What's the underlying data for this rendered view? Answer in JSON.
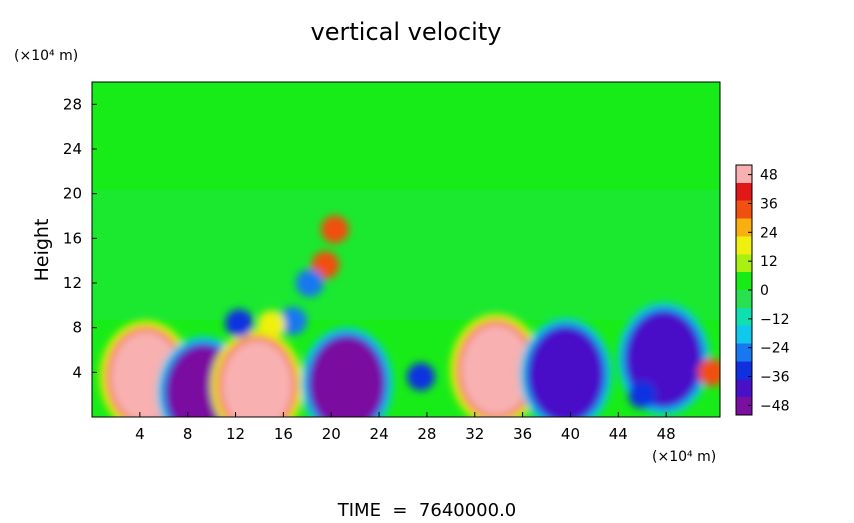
{
  "chart_data": {
    "type": "heatmap",
    "title": "vertical velocity",
    "ylabel": "Height",
    "y_unit_label": "(×10⁴ m)",
    "x_unit_label": "(×10⁴ m)",
    "footer": "TIME  =  7640000.0",
    "x_range": [
      0,
      52.5
    ],
    "y_range": [
      0,
      30
    ],
    "x_ticks": [
      4,
      8,
      12,
      16,
      20,
      24,
      28,
      32,
      36,
      40,
      44,
      48
    ],
    "y_ticks": [
      4,
      8,
      12,
      16,
      20,
      24,
      28
    ],
    "colorbar": {
      "range": [
        -52,
        52
      ],
      "tick_values": [
        48,
        36,
        24,
        12,
        0,
        -12,
        -24,
        -36,
        -48
      ],
      "tick_labels": [
        "48",
        "36",
        "24",
        "12",
        "0",
        "−12",
        "−24",
        "−36",
        "−48"
      ],
      "colors": [
        "#7a0fa0",
        "#4a10c8",
        "#1030e0",
        "#1878f0",
        "#10c8ec",
        "#10e0b0",
        "#28e050",
        "#18ec18",
        "#a8f010",
        "#f0f010",
        "#f8b010",
        "#f05010",
        "#e01818",
        "#f8b0b0"
      ]
    },
    "blobs": [
      {
        "x": 4.5,
        "y": 3.6,
        "value": 50
      },
      {
        "x": 9.3,
        "y": 2.2,
        "value": -48
      },
      {
        "x": 13.8,
        "y": 2.8,
        "value": 48
      },
      {
        "x": 21.3,
        "y": 3.0,
        "value": -46
      },
      {
        "x": 27.5,
        "y": 3.6,
        "value": -30
      },
      {
        "x": 33.8,
        "y": 4.2,
        "value": 50
      },
      {
        "x": 39.6,
        "y": 3.8,
        "value": -42
      },
      {
        "x": 47.8,
        "y": 5.2,
        "value": -40
      },
      {
        "x": 46.0,
        "y": 2.0,
        "value": -30
      },
      {
        "x": 20.3,
        "y": 16.8,
        "value": 34
      },
      {
        "x": 19.5,
        "y": 13.6,
        "value": 30
      },
      {
        "x": 18.2,
        "y": 12.0,
        "value": -28
      },
      {
        "x": 12.3,
        "y": 8.4,
        "value": -30
      },
      {
        "x": 16.8,
        "y": 8.6,
        "value": -28
      },
      {
        "x": 15.0,
        "y": 8.3,
        "value": 22
      },
      {
        "x": 51.8,
        "y": 4.0,
        "value": 30
      }
    ]
  }
}
